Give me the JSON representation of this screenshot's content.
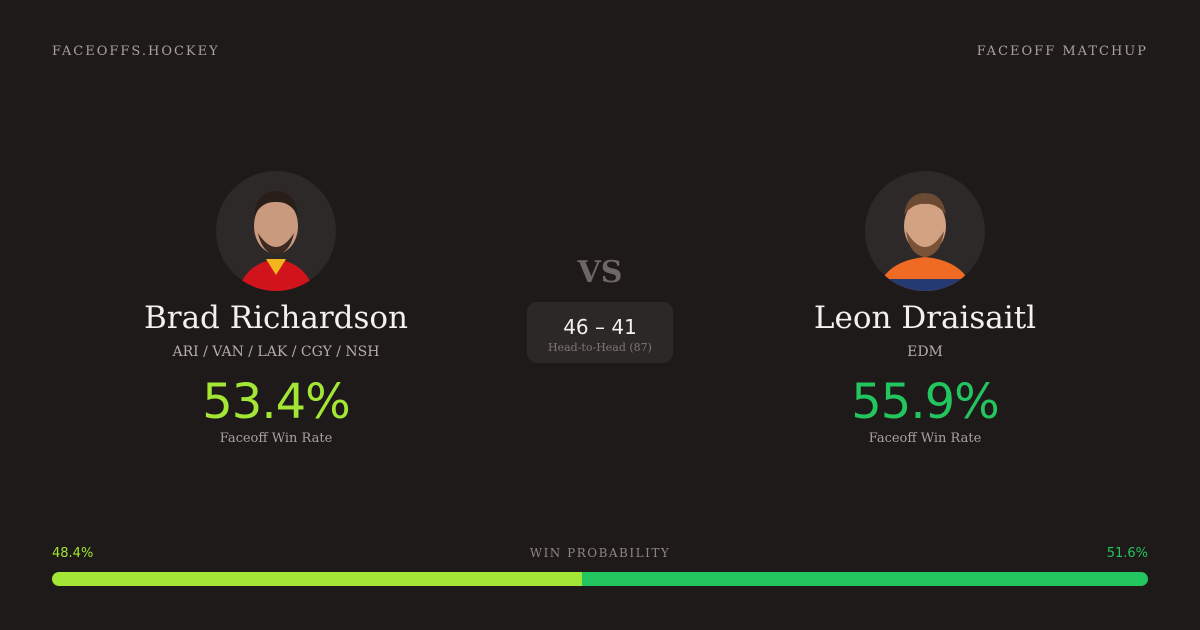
{
  "header": {
    "brand": "FACEOFFS.HOCKEY",
    "label": "FACEOFF MATCHUP"
  },
  "players": [
    {
      "name": "Brad Richardson",
      "teams": "ARI / VAN / LAK / CGY / NSH",
      "win_rate": "53.4%",
      "win_rate_label": "Faceoff Win Rate"
    },
    {
      "name": "Leon Draisaitl",
      "teams": "EDM",
      "win_rate": "55.9%",
      "win_rate_label": "Faceoff Win Rate"
    }
  ],
  "versus": "VS",
  "head_to_head": {
    "score": "46 – 41",
    "label": "Head-to-Head (87)"
  },
  "win_probability": {
    "label": "WIN PROBABILITY",
    "left": {
      "value": 48.4,
      "label": "48.4%"
    },
    "right": {
      "value": 51.6,
      "label": "51.6%"
    }
  }
}
